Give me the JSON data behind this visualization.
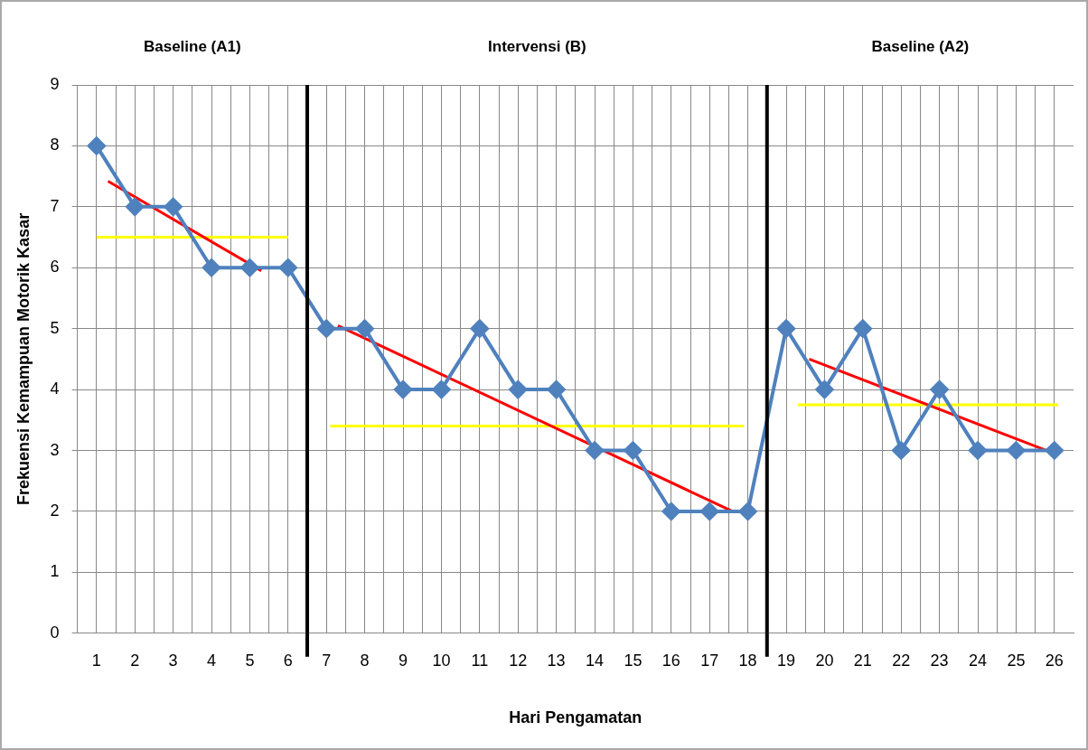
{
  "chart_data": {
    "type": "line",
    "xlabel": "Hari Pengamatan",
    "ylabel": "Frekuensi Kemampuan Motorik Kasar",
    "annotations": [
      "Baseline (A1)",
      "Intervensi (B)",
      "Baseline (A2)"
    ],
    "x": [
      1,
      2,
      3,
      4,
      5,
      6,
      7,
      8,
      9,
      10,
      11,
      12,
      13,
      14,
      15,
      16,
      17,
      18,
      19,
      20,
      21,
      22,
      23,
      24,
      25,
      26
    ],
    "series": [
      {
        "type": "line",
        "color": "#4f81bd",
        "marker": "diamond",
        "values": [
          8,
          7,
          7,
          6,
          6,
          6,
          5,
          5,
          4,
          4,
          5,
          4,
          4,
          3,
          3,
          2,
          2,
          2,
          5,
          4,
          5,
          3,
          4,
          3,
          3,
          3
        ]
      },
      {
        "type": "line",
        "color": "#ff0000",
        "marker": "none",
        "x": [
          1.3,
          5.3
        ],
        "values": [
          7.42,
          5.95
        ]
      },
      {
        "type": "line",
        "color": "#ff0000",
        "marker": "none",
        "x": [
          7.3,
          17.6
        ],
        "values": [
          5.05,
          2.0
        ]
      },
      {
        "type": "line",
        "color": "#ff0000",
        "marker": "none",
        "x": [
          19.6,
          25.8
        ],
        "values": [
          4.5,
          3.0
        ]
      },
      {
        "type": "line",
        "color": "#ffff00",
        "marker": "none",
        "x": [
          1,
          6
        ],
        "values": [
          6.5,
          6.5
        ]
      },
      {
        "type": "line",
        "color": "#ffff00",
        "marker": "none",
        "x": [
          7.1,
          17.9
        ],
        "values": [
          3.4,
          3.4
        ]
      },
      {
        "type": "line",
        "color": "#ffff00",
        "marker": "none",
        "x": [
          19.3,
          26.1
        ],
        "values": [
          3.75,
          3.75
        ]
      }
    ],
    "xlim": [
      0.5,
      26.5
    ],
    "xticks": [
      1,
      {
        "value": 1.5,
        "label": null
      },
      2,
      {
        "value": 2.5,
        "label": null
      },
      3,
      {
        "value": 3.5,
        "label": null
      },
      4,
      {
        "value": 4.5,
        "label": null
      },
      5,
      {
        "value": 5.5,
        "label": null
      },
      6,
      7,
      {
        "value": 7.5,
        "label": null
      },
      8,
      {
        "value": 8.5,
        "label": null
      },
      9,
      {
        "value": 9.5,
        "label": null
      },
      10,
      {
        "value": 10.5,
        "label": null
      },
      11,
      {
        "value": 11.5,
        "label": null
      },
      12,
      {
        "value": 12.5,
        "label": null
      },
      13,
      {
        "value": 13.5,
        "label": null
      },
      14,
      {
        "value": 14.5,
        "label": null
      },
      15,
      {
        "value": 15.5,
        "label": null
      },
      16,
      {
        "value": 16.5,
        "label": null
      },
      17,
      {
        "value": 17.5,
        "label": null
      },
      18,
      19,
      {
        "value": 19.5,
        "label": null
      },
      20,
      {
        "value": 20.5,
        "label": null
      },
      21,
      {
        "value": 21.5,
        "label": null
      },
      22,
      {
        "value": 22.5,
        "label": null
      },
      23,
      {
        "value": 23.5,
        "label": null
      },
      24,
      {
        "value": 24.5,
        "label": null
      },
      25,
      {
        "value": 25.5,
        "label": null
      },
      26
    ],
    "ylim": [
      0,
      9
    ],
    "yticks": [
      0,
      1,
      2,
      3,
      4,
      5,
      6,
      7,
      8,
      9
    ],
    "ref_lines": [
      {
        "axis": "x",
        "value": 6.5,
        "color": "#000000"
      },
      {
        "axis": "x",
        "value": 18.5,
        "color": "#000000"
      }
    ],
    "grid": true,
    "legend": false
  }
}
